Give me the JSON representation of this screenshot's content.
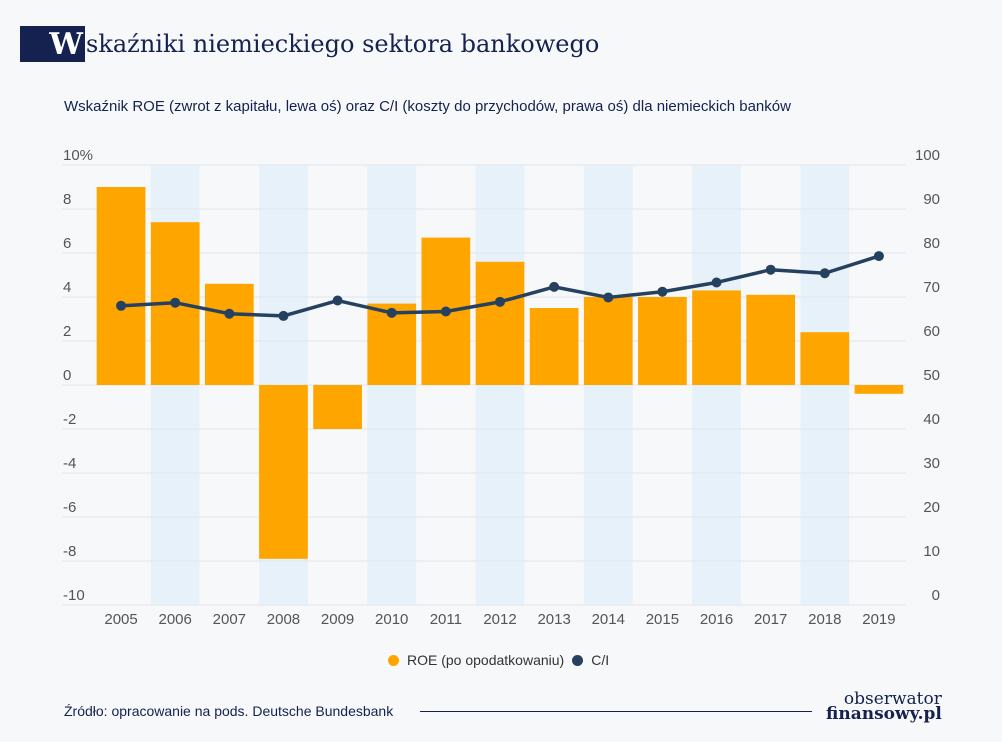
{
  "header": {
    "title_initial": "W",
    "title_rest": "skaźniki niemieckiego sektora bankowego",
    "subtitle": "Wskaźnik ROE (zwrot z kapitału, lewa oś) oraz C/I (koszty do przychodów, prawa oś) dla niemieckich banków"
  },
  "chart_data": {
    "type": "bar+line",
    "categories": [
      "2005",
      "2006",
      "2007",
      "2008",
      "2009",
      "2010",
      "2011",
      "2012",
      "2013",
      "2014",
      "2015",
      "2016",
      "2017",
      "2018",
      "2019"
    ],
    "series": [
      {
        "name": "ROE (po opodatkowaniu)",
        "type": "bar",
        "axis": "left",
        "color": "#ffa500",
        "values": [
          9.0,
          7.4,
          4.6,
          -7.9,
          -2.0,
          3.7,
          6.7,
          5.6,
          3.5,
          4.0,
          4.0,
          4.3,
          4.1,
          2.4,
          -0.4
        ]
      },
      {
        "name": "C/I",
        "type": "line",
        "axis": "right",
        "color": "#26405f",
        "values": [
          68.0,
          68.7,
          66.2,
          65.7,
          69.2,
          66.4,
          66.7,
          68.9,
          72.3,
          69.9,
          71.2,
          73.3,
          76.2,
          75.4,
          79.3
        ]
      }
    ],
    "left_axis": {
      "ylim": [
        -10,
        10
      ],
      "ticks": [
        "10%",
        "8",
        "6",
        "4",
        "2",
        "0",
        "-2",
        "-4",
        "-6",
        "-8",
        "-10"
      ]
    },
    "right_axis": {
      "ylim": [
        0,
        100
      ],
      "ticks": [
        "100",
        "90",
        "80",
        "70",
        "60",
        "50",
        "40",
        "30",
        "20",
        "10",
        "0"
      ]
    },
    "grid": true,
    "legend": "bottom-center"
  },
  "footer": {
    "source": "Źródło: opracowanie na pods. Deutsche Bundesbank",
    "logo_line1": "obserwator",
    "logo_line2": "finansowy.pl"
  }
}
